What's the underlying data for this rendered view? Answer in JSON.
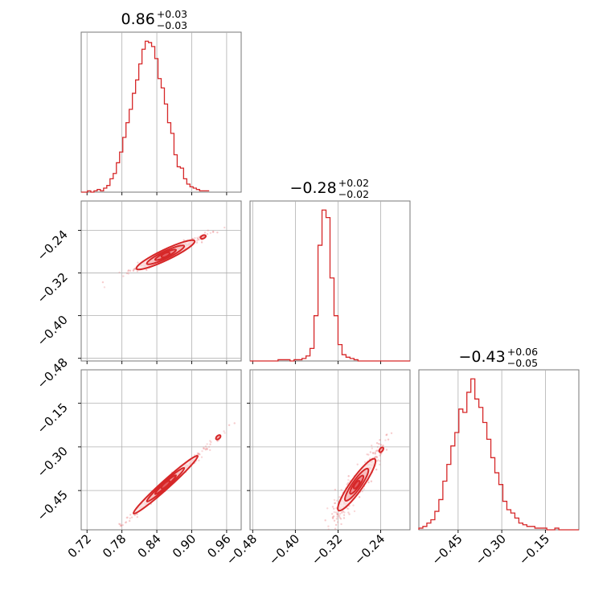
{
  "style": {
    "accent_color": "#d62728",
    "grid_color": "#b0b0b0",
    "frame_color": "#777777"
  },
  "chart_data": {
    "type": "corner",
    "parameters": [
      {
        "median": 0.86,
        "plus": 0.03,
        "minus": 0.03,
        "title_main": "0.86",
        "title_plus": "+0.03",
        "title_minus": "−0.03",
        "range": [
          0.71,
          0.985
        ],
        "ticks": [
          0.72,
          0.78,
          0.84,
          0.9,
          0.96
        ],
        "tick_labels": [
          "0.72",
          "0.78",
          "0.84",
          "0.90",
          "0.96"
        ]
      },
      {
        "median": -0.28,
        "plus": 0.02,
        "minus": 0.02,
        "title_main": "−0.28",
        "title_plus": "+0.02",
        "title_minus": "−0.02",
        "range": [
          -0.485,
          -0.185
        ],
        "ticks": [
          -0.48,
          -0.4,
          -0.32,
          -0.24
        ],
        "tick_labels": [
          "−0.48",
          "−0.40",
          "−0.32",
          "−0.24"
        ]
      },
      {
        "median": -0.43,
        "plus": 0.06,
        "minus": 0.05,
        "title_main": "−0.43",
        "title_plus": "+0.06",
        "title_minus": "−0.05",
        "range": [
          -0.585,
          -0.035
        ],
        "ticks": [
          -0.45,
          -0.3,
          -0.15
        ],
        "tick_labels": [
          "−0.45",
          "−0.30",
          "−0.15"
        ]
      }
    ],
    "histograms": [
      {
        "param": 0,
        "bin_start": 0.71,
        "bin_width": 0.0055,
        "counts": [
          0,
          0,
          1,
          0,
          1,
          2,
          1,
          3,
          5,
          10,
          14,
          22,
          30,
          41,
          52,
          62,
          74,
          84,
          96,
          107,
          113,
          112,
          109,
          100,
          85,
          78,
          66,
          52,
          44,
          28,
          19,
          18,
          10,
          6,
          4,
          3,
          2,
          1,
          1,
          1
        ]
      },
      {
        "param": 1,
        "bin_start": -0.485,
        "bin_width": 0.0075,
        "counts": [
          0,
          0,
          0,
          0,
          0,
          0,
          0,
          1,
          1,
          1,
          0,
          1,
          1,
          2,
          4,
          10,
          36,
          92,
          120,
          114,
          66,
          36,
          13,
          5,
          3,
          2,
          1,
          0,
          0,
          0,
          0,
          0,
          0,
          0,
          0,
          0,
          0,
          0,
          0,
          0
        ]
      },
      {
        "param": 2,
        "bin_start": -0.585,
        "bin_width": 0.01375,
        "counts": [
          1,
          2,
          4,
          6,
          11,
          18,
          29,
          39,
          50,
          58,
          72,
          70,
          82,
          90,
          78,
          73,
          64,
          54,
          43,
          34,
          27,
          17,
          12,
          10,
          7,
          4,
          3,
          2,
          2,
          1,
          1,
          1,
          0,
          0,
          1,
          0,
          0,
          0,
          0,
          0
        ]
      }
    ],
    "joint": [
      {
        "x_param": 0,
        "y_param": 1,
        "x_mean": 0.855,
        "y_mean": -0.286,
        "slope": 0.52,
        "width": 0.004,
        "x_extent": [
          0.8,
          0.93
        ],
        "levels": [
          {
            "a": 0.007,
            "b": 0.0022
          },
          {
            "a": 0.018,
            "b": 0.0045
          },
          {
            "a": 0.032,
            "b": 0.0075
          },
          {
            "a": 0.05,
            "b": 0.011
          }
        ]
      },
      {
        "x_param": 0,
        "y_param": 2,
        "x_mean": 0.855,
        "y_mean": -0.43,
        "slope": 1.8,
        "width": 0.007,
        "x_extent": [
          0.78,
          0.96
        ],
        "levels": [
          {
            "a": 0.007,
            "b": 0.004
          },
          {
            "a": 0.018,
            "b": 0.008
          },
          {
            "a": 0.032,
            "b": 0.013
          },
          {
            "a": 0.055,
            "b": 0.019
          }
        ]
      },
      {
        "x_param": 1,
        "y_param": 2,
        "x_mean": -0.285,
        "y_mean": -0.43,
        "slope": 2.6,
        "width": 0.025,
        "x_extent": [
          -0.34,
          -0.23
        ],
        "levels": [
          {
            "a": 0.005,
            "b": 0.008
          },
          {
            "a": 0.012,
            "b": 0.016
          },
          {
            "a": 0.021,
            "b": 0.026
          },
          {
            "a": 0.034,
            "b": 0.038
          }
        ]
      }
    ],
    "grid": true
  }
}
